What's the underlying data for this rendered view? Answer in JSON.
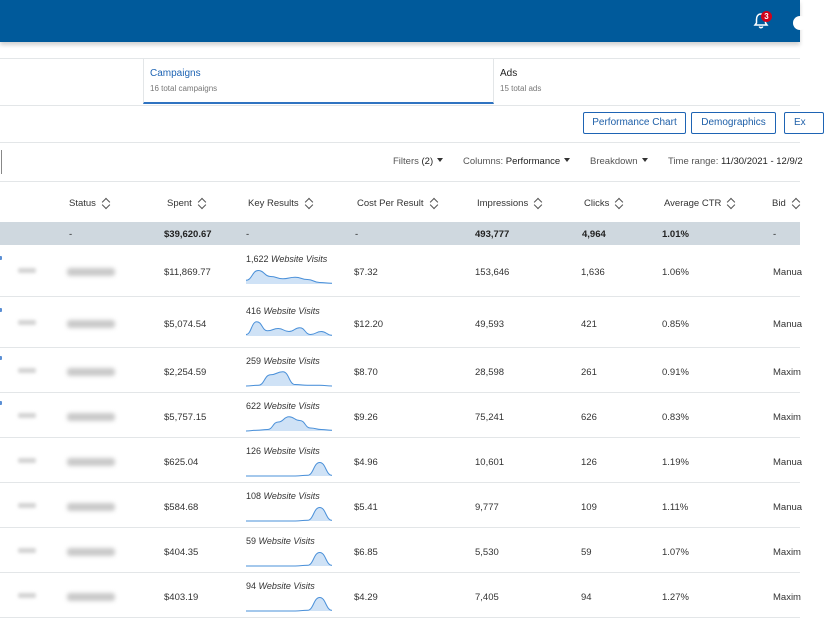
{
  "header": {
    "notification_count": "3"
  },
  "tabs": [
    {
      "title": "Campaigns",
      "subtitle": "16 total campaigns"
    },
    {
      "title": "Ads",
      "subtitle": "15 total ads"
    }
  ],
  "buttons": {
    "performance_chart": "Performance Chart",
    "demographics": "Demographics",
    "export": "Ex"
  },
  "toolbar": {
    "filters_label": "Filters",
    "filters_count": "(2)",
    "columns_label": "Columns:",
    "columns_value": "Performance",
    "breakdown_label": "Breakdown",
    "time_range_label": "Time range:",
    "time_range_value": "11/30/2021 - 12/9/2"
  },
  "columns": [
    "Status",
    "Spent",
    "Key Results",
    "Cost Per Result",
    "Impressions",
    "Clicks",
    "Average CTR",
    "Bid"
  ],
  "totals": {
    "status": "-",
    "spent": "$39,620.67",
    "key_results": "-",
    "cost_per_result": "-",
    "impressions": "493,777",
    "clicks": "4,964",
    "ctr": "1.01%",
    "bid": "-"
  },
  "rows": [
    {
      "spent": "$11,869.77",
      "results": "1,622",
      "result_type": "Website Visits",
      "cpr": "$7.32",
      "impressions": "153,646",
      "clicks": "1,636",
      "ctr": "1.06%",
      "bid": "Manua",
      "spark": [
        0.25,
        0.9,
        0.5,
        0.35,
        0.45,
        0.3,
        0.1,
        0.05
      ]
    },
    {
      "spent": "$5,074.54",
      "results": "416",
      "result_type": "Website Visits",
      "cpr": "$12.20",
      "impressions": "49,593",
      "clicks": "421",
      "ctr": "0.85%",
      "bid": "Manua",
      "spark": [
        0.1,
        0.95,
        0.35,
        0.5,
        0.3,
        0.55,
        0.1,
        0.3,
        0.05
      ]
    },
    {
      "spent": "$2,254.59",
      "results": "259",
      "result_type": "Website Visits",
      "cpr": "$8.70",
      "impressions": "28,598",
      "clicks": "261",
      "ctr": "0.91%",
      "bid": "Maxim",
      "spark": [
        0.0,
        0.05,
        0.75,
        0.95,
        0.1,
        0.05,
        0.05,
        0.0
      ]
    },
    {
      "spent": "$5,757.15",
      "results": "622",
      "result_type": "Website Visits",
      "cpr": "$9.26",
      "impressions": "75,241",
      "clicks": "626",
      "ctr": "0.83%",
      "bid": "Maxim",
      "spark": [
        0.0,
        0.05,
        0.1,
        0.6,
        0.95,
        0.7,
        0.2,
        0.1,
        0.05
      ]
    },
    {
      "spent": "$625.04",
      "results": "126",
      "result_type": "Website Visits",
      "cpr": "$4.96",
      "impressions": "10,601",
      "clicks": "126",
      "ctr": "1.19%",
      "bid": "Manua",
      "spark": [
        0.0,
        0.0,
        0.0,
        0.0,
        0.0,
        0.05,
        0.9,
        0.05
      ]
    },
    {
      "spent": "$584.68",
      "results": "108",
      "result_type": "Website Visits",
      "cpr": "$5.41",
      "impressions": "9,777",
      "clicks": "109",
      "ctr": "1.11%",
      "bid": "Manua",
      "spark": [
        0.0,
        0.0,
        0.0,
        0.0,
        0.0,
        0.05,
        0.9,
        0.05
      ]
    },
    {
      "spent": "$404.35",
      "results": "59",
      "result_type": "Website Visits",
      "cpr": "$6.85",
      "impressions": "5,530",
      "clicks": "59",
      "ctr": "1.07%",
      "bid": "Maxim",
      "spark": [
        0.0,
        0.0,
        0.0,
        0.0,
        0.0,
        0.05,
        0.9,
        0.05
      ]
    },
    {
      "spent": "$403.19",
      "results": "94",
      "result_type": "Website Visits",
      "cpr": "$4.29",
      "impressions": "7,405",
      "clicks": "94",
      "ctr": "1.27%",
      "bid": "Maxim",
      "spark": [
        0.0,
        0.0,
        0.0,
        0.0,
        0.0,
        0.05,
        0.9,
        0.05
      ]
    }
  ]
}
